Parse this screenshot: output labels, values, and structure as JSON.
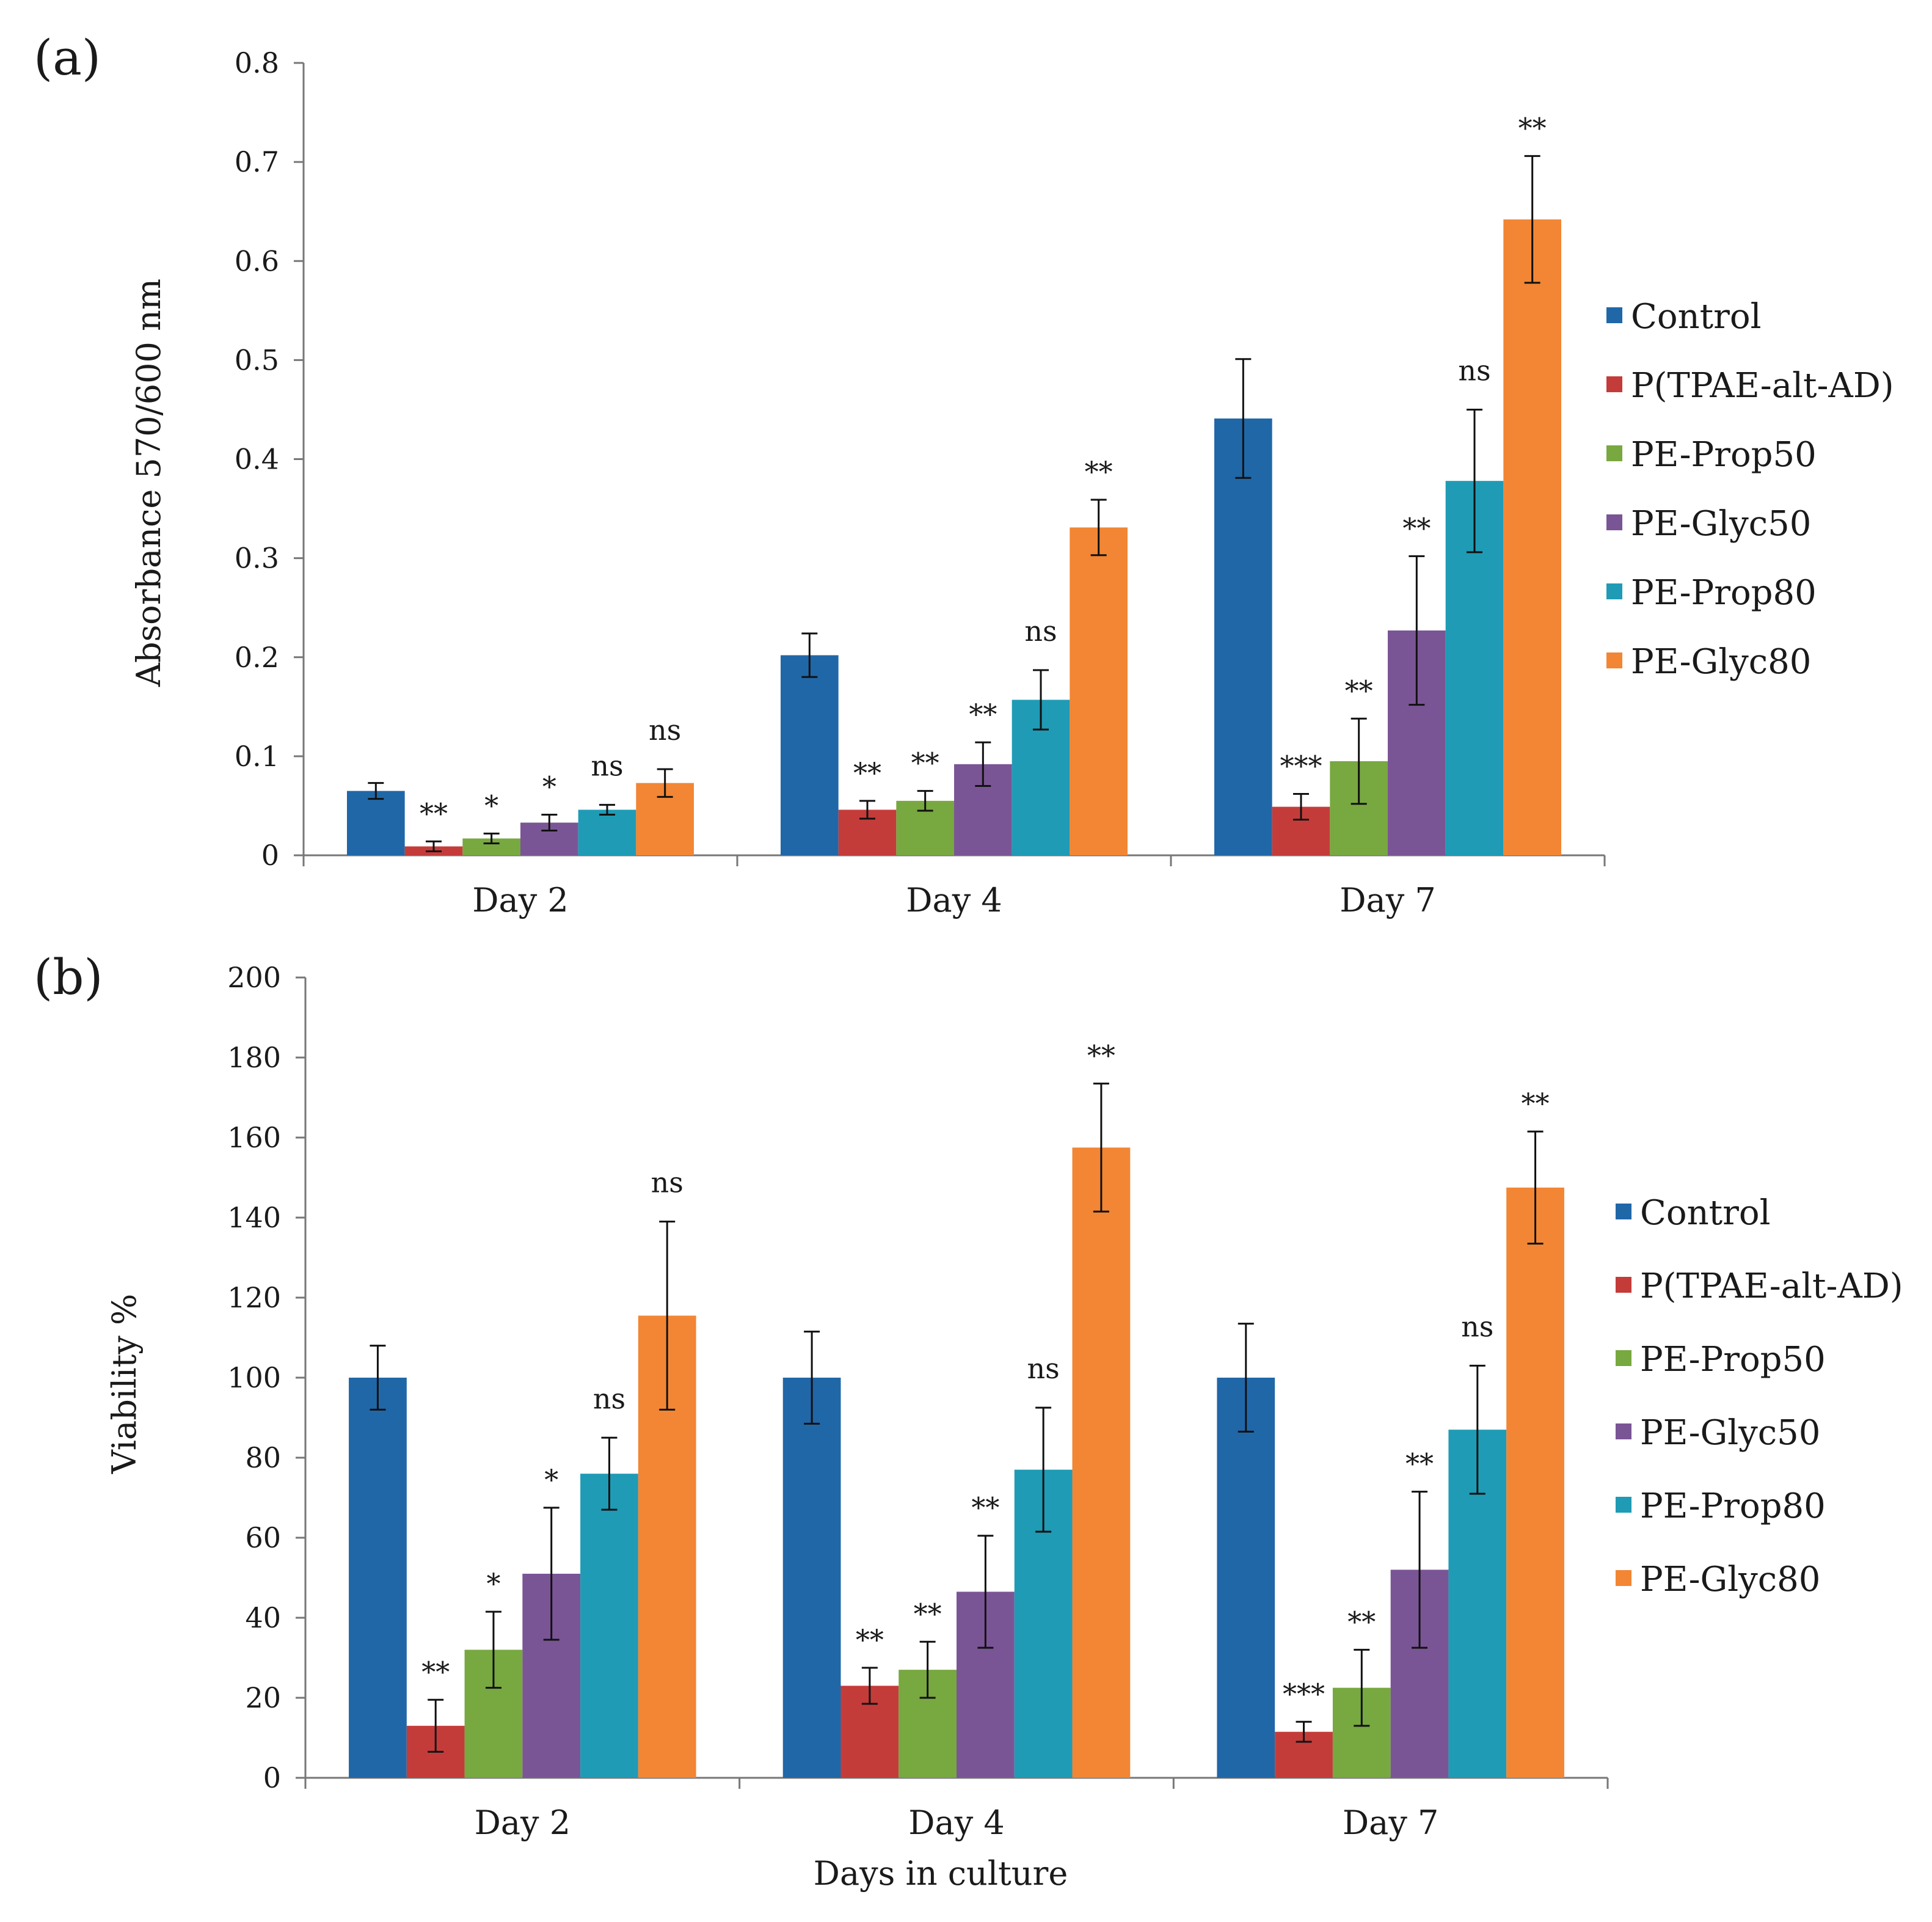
{
  "colors": {
    "Control": "#2067a8",
    "P(TPAE-alt-AD)": "#c43c3a",
    "PE-Prop50": "#78a840",
    "PE-Glyc50": "#7a5595",
    "PE-Prop80": "#1f9bb5",
    "PE-Glyc80": "#f28634",
    "axis": "#777777",
    "error": "#111111"
  },
  "chart_data": [
    {
      "panel_label": "(a)",
      "type": "bar",
      "title": "",
      "xlabel": "",
      "ylabel": "Absorbance 570/600 nm",
      "ylim": [
        0,
        0.8
      ],
      "yticks": [
        "0",
        "0.1",
        "0.2",
        "0.3",
        "0.4",
        "0.5",
        "0.6",
        "0.7",
        "0.8"
      ],
      "categories": [
        "Day 2",
        "Day 4",
        "Day 7"
      ],
      "grid": false,
      "legend_position": "right",
      "series": [
        {
          "name": "Control",
          "values": [
            0.065,
            0.202,
            0.441
          ],
          "errors": [
            0.008,
            0.022,
            0.06
          ],
          "sig": [
            "",
            "",
            ""
          ]
        },
        {
          "name": "P(TPAE-alt-AD)",
          "values": [
            0.009,
            0.046,
            0.049
          ],
          "errors": [
            0.005,
            0.009,
            0.013
          ],
          "sig": [
            "**",
            "**",
            "***"
          ]
        },
        {
          "name": "PE-Prop50",
          "values": [
            0.017,
            0.055,
            0.095
          ],
          "errors": [
            0.005,
            0.01,
            0.043
          ],
          "sig": [
            "*",
            "**",
            "**"
          ]
        },
        {
          "name": "PE-Glyc50",
          "values": [
            0.033,
            0.092,
            0.227
          ],
          "errors": [
            0.008,
            0.022,
            0.075
          ],
          "sig": [
            "*",
            "**",
            "**"
          ]
        },
        {
          "name": "PE-Prop80",
          "values": [
            0.046,
            0.157,
            0.378
          ],
          "errors": [
            0.005,
            0.03,
            0.072
          ],
          "sig": [
            "ns",
            "ns",
            "ns"
          ]
        },
        {
          "name": "PE-Glyc80",
          "values": [
            0.073,
            0.331,
            0.642
          ],
          "errors": [
            0.014,
            0.028,
            0.064
          ],
          "sig": [
            "ns",
            "**",
            "**"
          ]
        }
      ]
    },
    {
      "panel_label": "(b)",
      "type": "bar",
      "title": "",
      "xlabel": "Days in culture",
      "ylabel": "Viability %",
      "ylim": [
        0,
        200
      ],
      "yticks": [
        "0",
        "20",
        "40",
        "60",
        "80",
        "100",
        "120",
        "140",
        "160",
        "180",
        "200"
      ],
      "categories": [
        "Day 2",
        "Day 4",
        "Day 7"
      ],
      "grid": false,
      "legend_position": "right",
      "series": [
        {
          "name": "Control",
          "values": [
            100,
            100,
            100
          ],
          "errors": [
            8,
            11.5,
            13.5
          ],
          "sig": [
            "",
            "",
            ""
          ]
        },
        {
          "name": "P(TPAE-alt-AD)",
          "values": [
            13,
            23,
            11.5
          ],
          "errors": [
            6.5,
            4.5,
            2.5
          ],
          "sig": [
            "**",
            "**",
            "***"
          ]
        },
        {
          "name": "PE-Prop50",
          "values": [
            32,
            27,
            22.5
          ],
          "errors": [
            9.5,
            7,
            9.5
          ],
          "sig": [
            "*",
            "**",
            "**"
          ]
        },
        {
          "name": "PE-Glyc50",
          "values": [
            51,
            46.5,
            52
          ],
          "errors": [
            16.5,
            14,
            19.5
          ],
          "sig": [
            "*",
            "**",
            "**"
          ]
        },
        {
          "name": "PE-Prop80",
          "values": [
            76,
            77,
            87
          ],
          "errors": [
            9,
            15.5,
            16
          ],
          "sig": [
            "ns",
            "ns",
            "ns"
          ]
        },
        {
          "name": "PE-Glyc80",
          "values": [
            115.5,
            157.5,
            147.5
          ],
          "errors": [
            23.5,
            16,
            14
          ],
          "sig": [
            "ns",
            "**",
            "**"
          ]
        }
      ]
    }
  ]
}
